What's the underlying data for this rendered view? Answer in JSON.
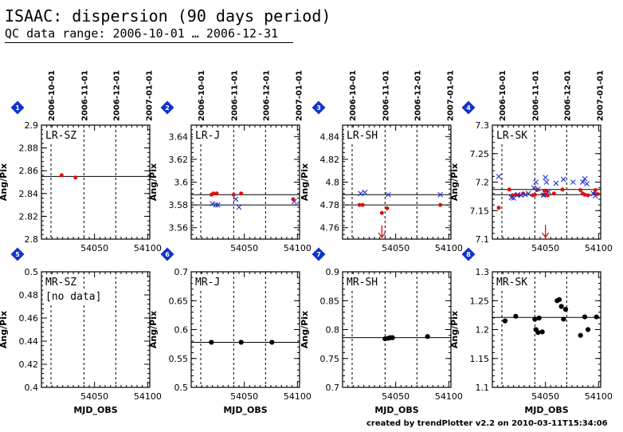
{
  "header": {
    "title": "ISAAC: dispersion (90 days period)",
    "subtitle": "QC data range: 2006-10-01 … 2006-12-31"
  },
  "footer": {
    "credit": "created by trendPlotter v2.2 on 2010-03-11T15:34:06"
  },
  "colors": {
    "red_series": "#dd1111",
    "blue_series": "#2233cc",
    "badge": "#1133cc",
    "black_series": "#000000"
  },
  "chart_data": {
    "shared": {
      "x_range": [
        54000,
        54102
      ],
      "x_ticks": [
        54050,
        54100
      ],
      "x_tick_labels": [
        "54050",
        "54100"
      ],
      "xlabel": "MJD_OBS",
      "ylabel": "Ang/Pix",
      "date_ticks": [
        {
          "label": "2006-10-01",
          "mjd": 54009
        },
        {
          "label": "2006-11-01",
          "mjd": 54040
        },
        {
          "label": "2006-12-01",
          "mjd": 54070
        },
        {
          "label": "2007-01-01",
          "mjd": 54101
        }
      ]
    },
    "panels": [
      {
        "number": "1",
        "title": "LR-SZ",
        "type": "scatter",
        "ylim": [
          2.8,
          2.9
        ],
        "yticks": [
          2.8,
          2.82,
          2.84,
          2.86,
          2.88,
          2.9
        ],
        "ytick_labels": [
          "2.8",
          "2.82",
          "2.84",
          "2.86",
          "2.88",
          "2.9"
        ],
        "hlines": [
          2.855
        ],
        "note": "",
        "show_ylabel": true,
        "series": [
          {
            "marker": "dot",
            "color": "red",
            "x": [
              54019,
              54032
            ],
            "y": [
              2.856,
              2.854
            ]
          }
        ]
      },
      {
        "number": "2",
        "title": "LR-J",
        "type": "scatter",
        "ylim": [
          3.55,
          3.65
        ],
        "yticks": [
          3.56,
          3.58,
          3.6,
          3.62,
          3.64
        ],
        "ytick_labels": [
          "3.56",
          "3.58",
          "3.6",
          "3.62",
          "3.64"
        ],
        "hlines": [
          3.589,
          3.58
        ],
        "note": "",
        "show_ylabel": true,
        "series": [
          {
            "marker": "dot",
            "color": "red",
            "x": [
              54019,
              54021,
              54024,
              54040,
              54047,
              54096
            ],
            "y": [
              3.589,
              3.59,
              3.59,
              3.589,
              3.59,
              3.585
            ]
          },
          {
            "marker": "cross",
            "color": "blue",
            "x": [
              54020,
              54023,
              54025,
              54042,
              54045,
              54097
            ],
            "y": [
              3.581,
              3.58,
              3.58,
              3.585,
              3.578,
              3.583
            ]
          }
        ]
      },
      {
        "number": "3",
        "title": "LR-SH",
        "type": "scatter",
        "ylim": [
          4.75,
          4.85
        ],
        "yticks": [
          4.76,
          4.78,
          4.8,
          4.82,
          4.84
        ],
        "ytick_labels": [
          "4.76",
          "4.78",
          "4.8",
          "4.82",
          "4.84"
        ],
        "hlines": [
          4.789,
          4.78
        ],
        "note": "",
        "show_ylabel": true,
        "series": [
          {
            "marker": "dot",
            "color": "red",
            "x": [
              54016,
              54019,
              54037,
              54042,
              54092
            ],
            "y": [
              4.78,
              4.78,
              4.773,
              4.777,
              4.78
            ]
          },
          {
            "marker": "cross",
            "color": "blue",
            "x": [
              54017,
              54021,
              54043,
              54092
            ],
            "y": [
              4.79,
              4.791,
              4.789,
              4.789
            ]
          }
        ],
        "arrows": [
          {
            "x": 54037,
            "from_y": 4.762,
            "color": "red"
          }
        ]
      },
      {
        "number": "4",
        "title": "LR-SK",
        "type": "scatter",
        "ylim": [
          7.1,
          7.3
        ],
        "yticks": [
          7.1,
          7.15,
          7.2,
          7.25,
          7.3
        ],
        "ytick_labels": [
          "7.1",
          "7.15",
          "7.2",
          "7.25",
          "7.3"
        ],
        "hlines": [
          7.187,
          7.178
        ],
        "note": "",
        "show_ylabel": true,
        "series": [
          {
            "marker": "dot",
            "color": "red",
            "x": [
              54006,
              54016,
              54019,
              54022,
              54025,
              54029,
              54038,
              54040,
              54042,
              54048,
              54049,
              54050,
              54051,
              54052,
              54058,
              54066,
              54083,
              54085,
              54087,
              54090,
              54096,
              54097,
              54099
            ],
            "y": [
              7.155,
              7.187,
              7.177,
              7.178,
              7.177,
              7.18,
              7.177,
              7.178,
              7.186,
              7.178,
              7.185,
              7.178,
              7.185,
              7.177,
              7.18,
              7.187,
              7.186,
              7.18,
              7.178,
              7.177,
              7.18,
              7.186,
              7.179
            ]
          },
          {
            "marker": "cross",
            "color": "blue",
            "x": [
              54006,
              54018,
              54020,
              54024,
              54027,
              54031,
              54034,
              54039,
              54041,
              54043,
              54048,
              54050,
              54051,
              54053,
              54060,
              54067,
              54076,
              54085,
              54087,
              54089,
              54095,
              54097
            ],
            "y": [
              7.21,
              7.173,
              7.172,
              7.178,
              7.177,
              7.178,
              7.18,
              7.19,
              7.2,
              7.188,
              7.177,
              7.208,
              7.2,
              7.183,
              7.198,
              7.205,
              7.2,
              7.2,
              7.206,
              7.197,
              7.18,
              7.176
            ]
          }
        ],
        "arrows": [
          {
            "x": 54050,
            "from_y": 7.125,
            "color": "red"
          }
        ]
      },
      {
        "number": "5",
        "title": "MR-SZ",
        "type": "scatter",
        "ylim": [
          0.4,
          0.5
        ],
        "yticks": [
          0.4,
          0.42,
          0.44,
          0.46,
          0.48,
          0.5
        ],
        "ytick_labels": [
          "0.4",
          "0.42",
          "0.44",
          "0.46",
          "0.48",
          "0.5"
        ],
        "hlines": [],
        "note": "[no data]",
        "show_ylabel": true,
        "series": []
      },
      {
        "number": "6",
        "title": "MR-J",
        "type": "scatter",
        "ylim": [
          0.5,
          0.7
        ],
        "yticks": [
          0.5,
          0.55,
          0.6,
          0.65,
          0.7
        ],
        "ytick_labels": [
          "0.5",
          "0.55",
          "0.6",
          "0.65",
          "0.7"
        ],
        "hlines": [
          0.578
        ],
        "note": "",
        "show_ylabel": true,
        "series": [
          {
            "marker": "dot",
            "color": "black",
            "x": [
              54019,
              54047,
              54076
            ],
            "y": [
              0.578,
              0.578,
              0.578
            ]
          }
        ]
      },
      {
        "number": "7",
        "title": "MR-SH",
        "type": "scatter",
        "ylim": [
          0.7,
          0.9
        ],
        "yticks": [
          0.7,
          0.75,
          0.8,
          0.85,
          0.9
        ],
        "ytick_labels": [
          "0.7",
          "0.75",
          "0.8",
          "0.85",
          "0.9"
        ],
        "hlines": [
          0.786
        ],
        "note": "",
        "show_ylabel": true,
        "series": [
          {
            "marker": "dot",
            "color": "black",
            "x": [
              54040,
              54043,
              54045,
              54047,
              54080
            ],
            "y": [
              0.784,
              0.785,
              0.786,
              0.786,
              0.788
            ]
          }
        ]
      },
      {
        "number": "8",
        "title": "MR-SK",
        "type": "scatter",
        "ylim": [
          1.1,
          1.3
        ],
        "yticks": [
          1.1,
          1.15,
          1.2,
          1.25,
          1.3
        ],
        "ytick_labels": [
          "1.1",
          "1.15",
          "1.2",
          "1.25",
          "1.3"
        ],
        "hlines": [
          1.221
        ],
        "note": "",
        "show_ylabel": true,
        "series": [
          {
            "marker": "dot",
            "color": "black",
            "x": [
              54012,
              54022,
              54040,
              54041,
              54043,
              54044,
              54047,
              54061,
              54063,
              54065,
              54067,
              54069,
              54083,
              54087,
              54090,
              54098
            ],
            "y": [
              1.215,
              1.223,
              1.218,
              1.2,
              1.195,
              1.22,
              1.196,
              1.25,
              1.252,
              1.24,
              1.218,
              1.235,
              1.19,
              1.222,
              1.2,
              1.222
            ]
          }
        ]
      }
    ]
  }
}
